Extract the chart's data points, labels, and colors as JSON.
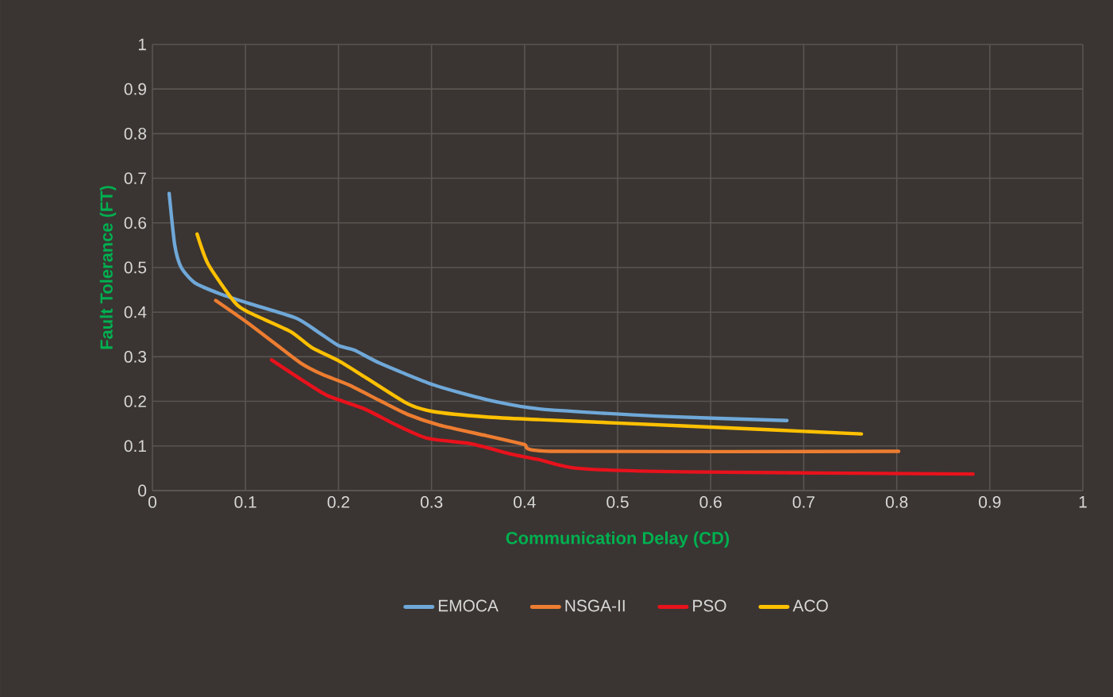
{
  "chart_data": {
    "type": "line",
    "xlabel": "Communication Delay (CD)",
    "ylabel": "Fault Tolerance (FT)",
    "xlim": [
      0,
      1
    ],
    "ylim": [
      0,
      1
    ],
    "xticks": [
      0,
      0.1,
      0.2,
      0.3,
      0.4,
      0.5,
      0.6,
      0.7,
      0.8,
      0.9,
      1
    ],
    "yticks": [
      0,
      0.1,
      0.2,
      0.3,
      0.4,
      0.5,
      0.6,
      0.7,
      0.8,
      0.9,
      1
    ],
    "grid": true,
    "legend": "bottom",
    "series": [
      {
        "name": "EMOCA",
        "color": "#6fa8d8",
        "x": [
          0.018,
          0.024,
          0.031,
          0.046,
          0.074,
          0.103,
          0.154,
          0.177,
          0.2,
          0.217,
          0.245,
          0.302,
          0.359,
          0.416,
          0.541,
          0.682
        ],
        "values": [
          0.666,
          0.55,
          0.5,
          0.465,
          0.44,
          0.42,
          0.387,
          0.357,
          0.325,
          0.315,
          0.285,
          0.237,
          0.204,
          0.183,
          0.167,
          0.157
        ]
      },
      {
        "name": "NSGA-II",
        "color": "#ed7d31",
        "x": [
          0.068,
          0.103,
          0.137,
          0.16,
          0.182,
          0.211,
          0.245,
          0.274,
          0.308,
          0.359,
          0.399,
          0.433,
          0.802
        ],
        "values": [
          0.426,
          0.375,
          0.321,
          0.285,
          0.261,
          0.237,
          0.201,
          0.171,
          0.147,
          0.123,
          0.104,
          0.088,
          0.088
        ]
      },
      {
        "name": "PSO",
        "color": "#e8121c",
        "x": [
          0.128,
          0.16,
          0.188,
          0.228,
          0.262,
          0.296,
          0.342,
          0.387,
          0.416,
          0.456,
          0.57,
          0.882
        ],
        "values": [
          0.293,
          0.249,
          0.213,
          0.183,
          0.147,
          0.117,
          0.105,
          0.081,
          0.069,
          0.05,
          0.042,
          0.037
        ]
      },
      {
        "name": "ACO",
        "color": "#ffc000",
        "x": [
          0.048,
          0.06,
          0.088,
          0.103,
          0.148,
          0.171,
          0.2,
          0.228,
          0.274,
          0.302,
          0.359,
          0.416,
          0.57,
          0.762
        ],
        "values": [
          0.575,
          0.507,
          0.423,
          0.4,
          0.357,
          0.321,
          0.291,
          0.255,
          0.195,
          0.177,
          0.165,
          0.159,
          0.145,
          0.127
        ]
      }
    ]
  }
}
